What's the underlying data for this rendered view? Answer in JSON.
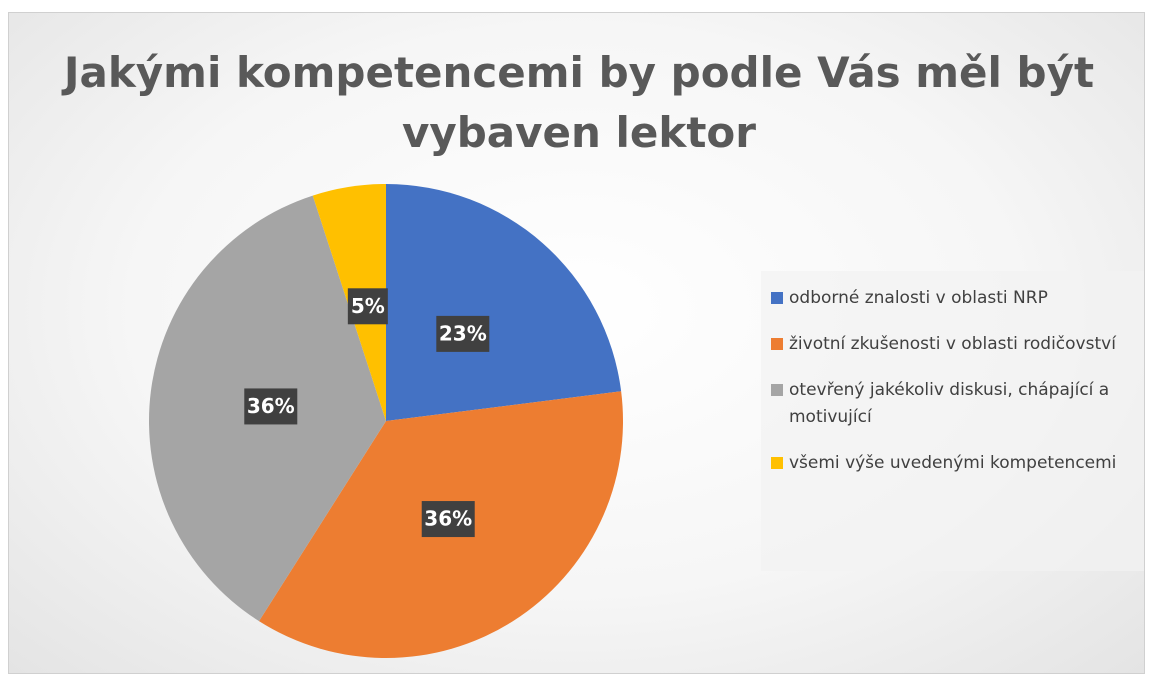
{
  "chart_data": {
    "type": "pie",
    "title": "Jakými kompetencemi by podle Vás měl být vybaven lektor",
    "categories": [
      "odborné znalosti v oblasti NRP",
      "životní zkušenosti v oblasti rodičovství",
      "otevřený jakékoliv diskusi, chápající a motivující",
      "všemi výše uvedenými kompetencemi"
    ],
    "values": [
      23,
      36,
      36,
      5
    ],
    "value_labels": [
      "23%",
      "36%",
      "36%",
      "5%"
    ],
    "colors": [
      "#4472c4",
      "#ed7d31",
      "#a5a5a5",
      "#ffc000"
    ],
    "legend": "right"
  }
}
